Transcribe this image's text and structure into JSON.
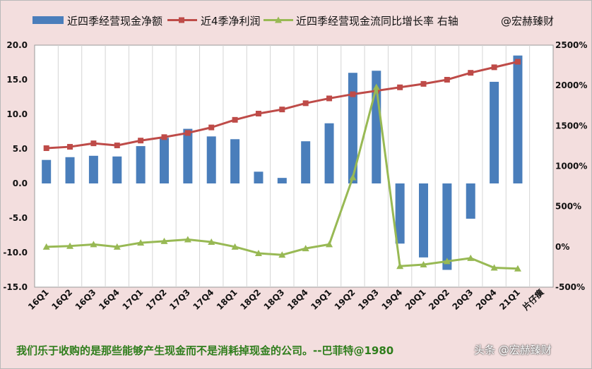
{
  "legend": {
    "bar": "近四季经营现金净额",
    "line1": "近4季净利润",
    "line2": "近四季经营现金流同比增长率 右轴",
    "credit": "@宏赫臻财"
  },
  "quote": "我们乐于收购的是那些能够产生现金而不是消耗掉现金的公司。--巴菲特@1980",
  "watermark": "头条 @宏赫臻财",
  "colors": {
    "bar": "#4a7ebb",
    "line1": "#be4b48",
    "line2": "#98b954",
    "plot_bg": "#ffffff",
    "page_bg": "#f3dede",
    "quote": "#2e7d1b"
  },
  "chart_data": {
    "type": "bar",
    "categories": [
      "16Q1",
      "16Q2",
      "16Q3",
      "16Q4",
      "17Q1",
      "17Q2",
      "17Q3",
      "17Q4",
      "18Q1",
      "18Q2",
      "18Q3",
      "18Q4",
      "19Q1",
      "19Q2",
      "19Q3",
      "19Q4",
      "20Q1",
      "20Q2",
      "20Q3",
      "20Q4",
      "21Q1",
      "片仔癀"
    ],
    "series": [
      {
        "name": "近四季经营现金净额",
        "type": "bar",
        "axis": "left",
        "values": [
          3.4,
          3.8,
          4.0,
          3.9,
          5.4,
          6.6,
          7.9,
          6.8,
          6.4,
          1.7,
          0.8,
          6.1,
          8.7,
          16.0,
          16.3,
          -8.7,
          -10.7,
          -12.5,
          -5.1,
          14.7,
          18.5,
          null
        ]
      },
      {
        "name": "近4季净利润",
        "type": "line",
        "axis": "left",
        "values": [
          5.1,
          5.3,
          5.8,
          5.5,
          6.2,
          6.7,
          7.3,
          8.1,
          9.2,
          10.1,
          10.7,
          11.6,
          12.3,
          12.9,
          13.4,
          13.9,
          14.4,
          15.0,
          16.0,
          16.8,
          17.6,
          null
        ]
      },
      {
        "name": "近四季经营现金流同比增长率 右轴",
        "type": "line",
        "axis": "right",
        "values": [
          0,
          0.1,
          0.3,
          0,
          0.5,
          0.7,
          0.9,
          0.6,
          0,
          -0.8,
          -1.0,
          -0.2,
          0.3,
          8.6,
          19.8,
          -2.4,
          -2.2,
          -1.8,
          -1.4,
          -2.6,
          -2.7,
          null
        ]
      }
    ],
    "y_left": {
      "min": -15,
      "max": 20,
      "step": 5,
      "tick_labels": [
        "-15.0",
        "-10.0",
        "-5.0",
        "0.0",
        "5.0",
        "10.0",
        "15.0",
        "20.0"
      ]
    },
    "y_right": {
      "min": -5,
      "max": 25,
      "step": 5,
      "tick_labels": [
        "-500%",
        "0%",
        "500%",
        "1000%",
        "1500%",
        "2000%",
        "2500%"
      ]
    },
    "grid": "vertical",
    "legend_position": "top"
  }
}
